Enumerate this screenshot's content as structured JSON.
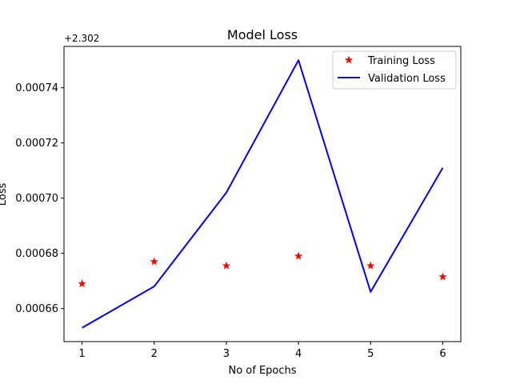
{
  "chart_data": {
    "type": "line",
    "title": "Model Loss",
    "xlabel": "No of Epochs",
    "ylabel": "Loss",
    "offset_label": "+2.302",
    "x": [
      1,
      2,
      3,
      4,
      5,
      6
    ],
    "xticks": [
      1,
      2,
      3,
      4,
      5,
      6
    ],
    "yticks": [
      0.00066,
      0.00068,
      0.0007,
      0.00072,
      0.00074
    ],
    "ytick_labels": [
      "0.00066",
      "0.00068",
      "0.00070",
      "0.00072",
      "0.00074"
    ],
    "xlim": [
      0.75,
      6.25
    ],
    "ylim": [
      0.000648,
      0.000755
    ],
    "grid": false,
    "legend_position": "top-right",
    "series": [
      {
        "name": "Training Loss",
        "style": "markers",
        "marker": "star",
        "color": "#ff0000",
        "values": [
          0.000669,
          0.000677,
          0.0006755,
          0.000679,
          0.0006755,
          0.0006715
        ]
      },
      {
        "name": "Validation Loss",
        "style": "line",
        "color": "#0000ff",
        "values": [
          0.000653,
          0.000668,
          0.000702,
          0.00075,
          0.000666,
          0.000711
        ]
      }
    ]
  }
}
